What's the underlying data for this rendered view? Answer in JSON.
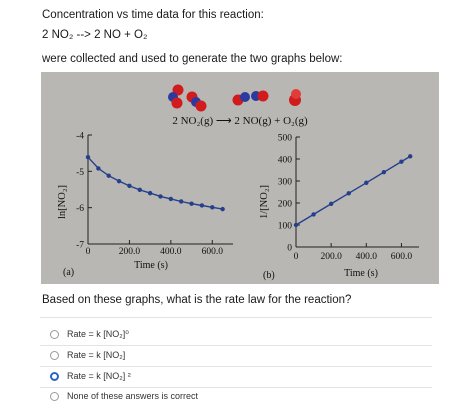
{
  "question": {
    "title": "Concentration vs time data for this reaction:",
    "equation": "2 NO₂ --> 2 NO + O₂",
    "description": "were collected and used to generate the two graphs below:",
    "prompt": "Based on these graphs, what is the rate law for the reaction?"
  },
  "figure": {
    "reaction": "2 NO₂(g) ⟶ 2 NO(g) + O₂(g)",
    "colors": {
      "panel": "#b9b7b3",
      "line": "#243f8c",
      "oxygen": "#d01c1c",
      "nitrogen": "#2c3aa0"
    }
  },
  "chart_data": [
    {
      "type": "line",
      "panel_label": "(a)",
      "xlabel": "Time (s)",
      "ylabel": "ln[NO₂]",
      "x_ticks": [
        "0",
        "200.0",
        "400.0",
        "600.0"
      ],
      "y_ticks": [
        "-4",
        "-5",
        "-6",
        "-7"
      ],
      "xlim": [
        0,
        700
      ],
      "ylim": [
        -7,
        -4
      ],
      "x": [
        0,
        50,
        100,
        150,
        200,
        250,
        300,
        350,
        400,
        450,
        500,
        550,
        600,
        650
      ],
      "values": [
        -4.61,
        -4.92,
        -5.12,
        -5.27,
        -5.4,
        -5.51,
        -5.6,
        -5.69,
        -5.76,
        -5.83,
        -5.89,
        -5.94,
        -5.99,
        -6.04
      ]
    },
    {
      "type": "line",
      "panel_label": "(b)",
      "xlabel": "Time (s)",
      "ylabel": "1/[NO₂]",
      "x_ticks": [
        "0",
        "200.0",
        "400.0",
        "600.0"
      ],
      "y_ticks": [
        "0",
        "100",
        "200",
        "300",
        "400",
        "500"
      ],
      "xlim": [
        0,
        700
      ],
      "ylim": [
        0,
        500
      ],
      "x": [
        0,
        100,
        200,
        300,
        400,
        500,
        600,
        650
      ],
      "values": [
        100,
        148,
        196,
        244,
        292,
        340,
        388,
        412
      ]
    }
  ],
  "options": [
    {
      "text": "Rate = k [NO₂]⁰",
      "selected": false
    },
    {
      "text": "Rate = k [NO₂]",
      "selected": false
    },
    {
      "text": "Rate = k [NO₂] ²",
      "selected": true
    },
    {
      "text": "None of these answers is correct",
      "selected": false
    }
  ]
}
